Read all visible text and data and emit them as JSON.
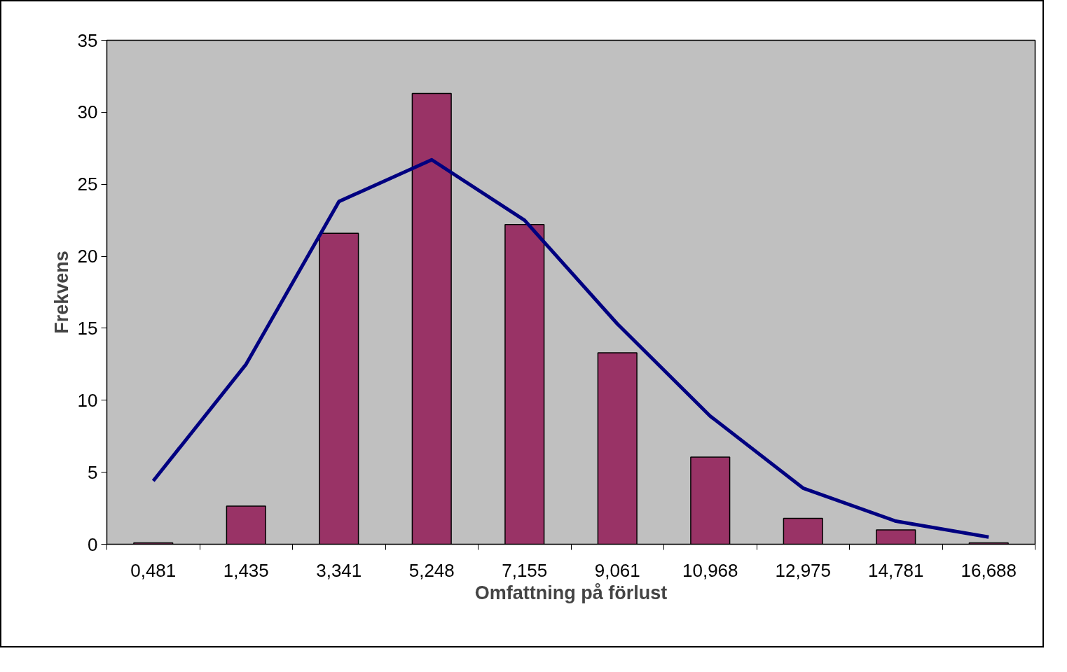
{
  "chart_data": {
    "type": "bar",
    "xlabel": "Omfattning på förlust",
    "ylabel": "Frekvens",
    "categories": [
      "0,481",
      "1,435",
      "3,341",
      "5,248",
      "7,155",
      "9,061",
      "10,968",
      "12,975",
      "14,781",
      "16,688"
    ],
    "ylim": [
      0,
      35
    ],
    "yticks": [
      0,
      5,
      10,
      15,
      20,
      25,
      30,
      35
    ],
    "grid": false,
    "series": [
      {
        "color": "#993366",
        "values": [
          0.1,
          2.65,
          21.6,
          31.3,
          22.2,
          13.3,
          6.05,
          1.8,
          1.0,
          0.1
        ]
      },
      {
        "type": "line",
        "color": "#000080",
        "marker": "none",
        "line_style": "solid",
        "values": [
          4.4,
          12.5,
          23.8,
          26.7,
          22.5,
          15.3,
          8.9,
          3.9,
          1.6,
          0.5
        ]
      }
    ]
  }
}
